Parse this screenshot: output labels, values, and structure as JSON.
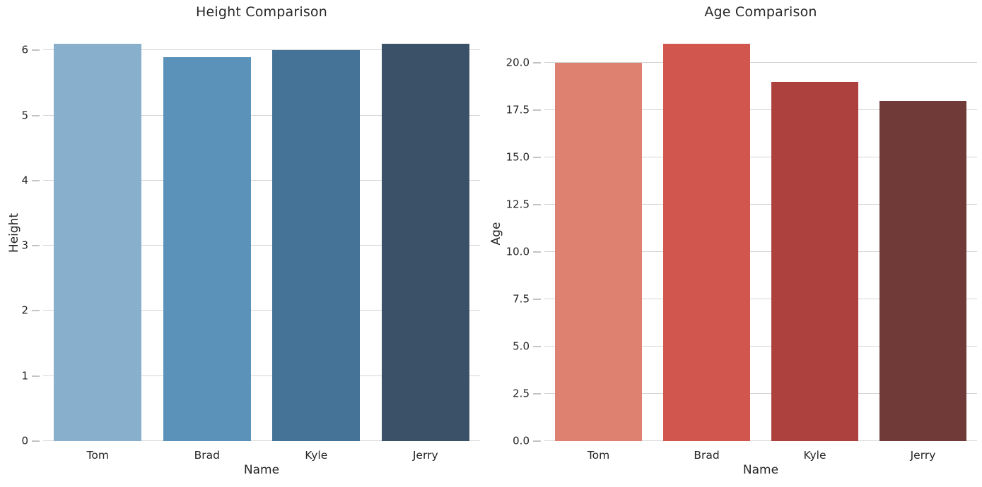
{
  "figure": {
    "background": "#ffffff",
    "text_color": "#262626",
    "grid_color": "#d4d4d4",
    "tick_mark_color": "#c3c3c3"
  },
  "chart_data": [
    {
      "type": "bar",
      "title": "Height Comparison",
      "xlabel": "Name",
      "ylabel": "Height",
      "categories": [
        "Tom",
        "Brad",
        "Kyle",
        "Jerry"
      ],
      "values": [
        6.1,
        5.9,
        6.0,
        6.1
      ],
      "bar_colors": [
        "#88b0cc",
        "#5b92ba",
        "#447397",
        "#3b5168"
      ],
      "ylim": [
        0,
        6.405
      ],
      "yticks": [
        0,
        1,
        2,
        3,
        4,
        5,
        6
      ],
      "ytick_labels": [
        "0",
        "1",
        "2",
        "3",
        "4",
        "5",
        "6"
      ],
      "grid": "horizontal",
      "legend": "none",
      "bar_width_fraction": 0.8
    },
    {
      "type": "bar",
      "title": "Age Comparison",
      "xlabel": "Name",
      "ylabel": "Age",
      "categories": [
        "Tom",
        "Brad",
        "Kyle",
        "Jerry"
      ],
      "values": [
        20,
        21,
        19,
        18
      ],
      "bar_colors": [
        "#de8170",
        "#d1574e",
        "#ac413d",
        "#6f3a38"
      ],
      "ylim": [
        0,
        22.05
      ],
      "yticks": [
        0,
        2.5,
        5,
        7.5,
        10,
        12.5,
        15,
        17.5,
        20
      ],
      "ytick_labels": [
        "0.0",
        "2.5",
        "5.0",
        "7.5",
        "10.0",
        "12.5",
        "15.0",
        "17.5",
        "20.0"
      ],
      "grid": "horizontal",
      "legend": "none",
      "bar_width_fraction": 0.8
    }
  ]
}
